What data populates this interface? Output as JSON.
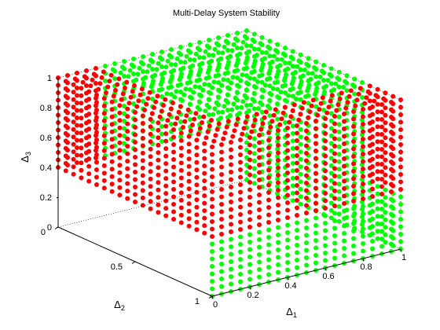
{
  "chart_data": {
    "type": "scatter",
    "title": "Multi-Delay System Stability",
    "axes": {
      "x": {
        "label": "Δ",
        "subscript": "1",
        "ticks": [
          "0",
          "0.2",
          "0.4",
          "0.6",
          "0.8",
          "1"
        ],
        "range": [
          0,
          1
        ]
      },
      "y": {
        "label": "Δ",
        "subscript": "2",
        "ticks": [
          "0",
          "0.5",
          "1"
        ],
        "range": [
          0,
          1
        ]
      },
      "z": {
        "label": "Δ",
        "subscript": "3",
        "ticks": [
          "0",
          "0.2",
          "0.4",
          "0.6",
          "0.8",
          "1"
        ],
        "range": [
          0,
          1
        ]
      }
    },
    "grid": true,
    "grid_resolution": 20,
    "series": [
      {
        "color": "#ff0000",
        "marker": "filled-circle"
      },
      {
        "color": "#00ff00",
        "marker": "filled-circle"
      }
    ],
    "region_rule": {
      "red": "delta3 >= 0.4 and (delta1 <= 0.2 or delta2 <= 0.2)",
      "green": "otherwise"
    }
  }
}
